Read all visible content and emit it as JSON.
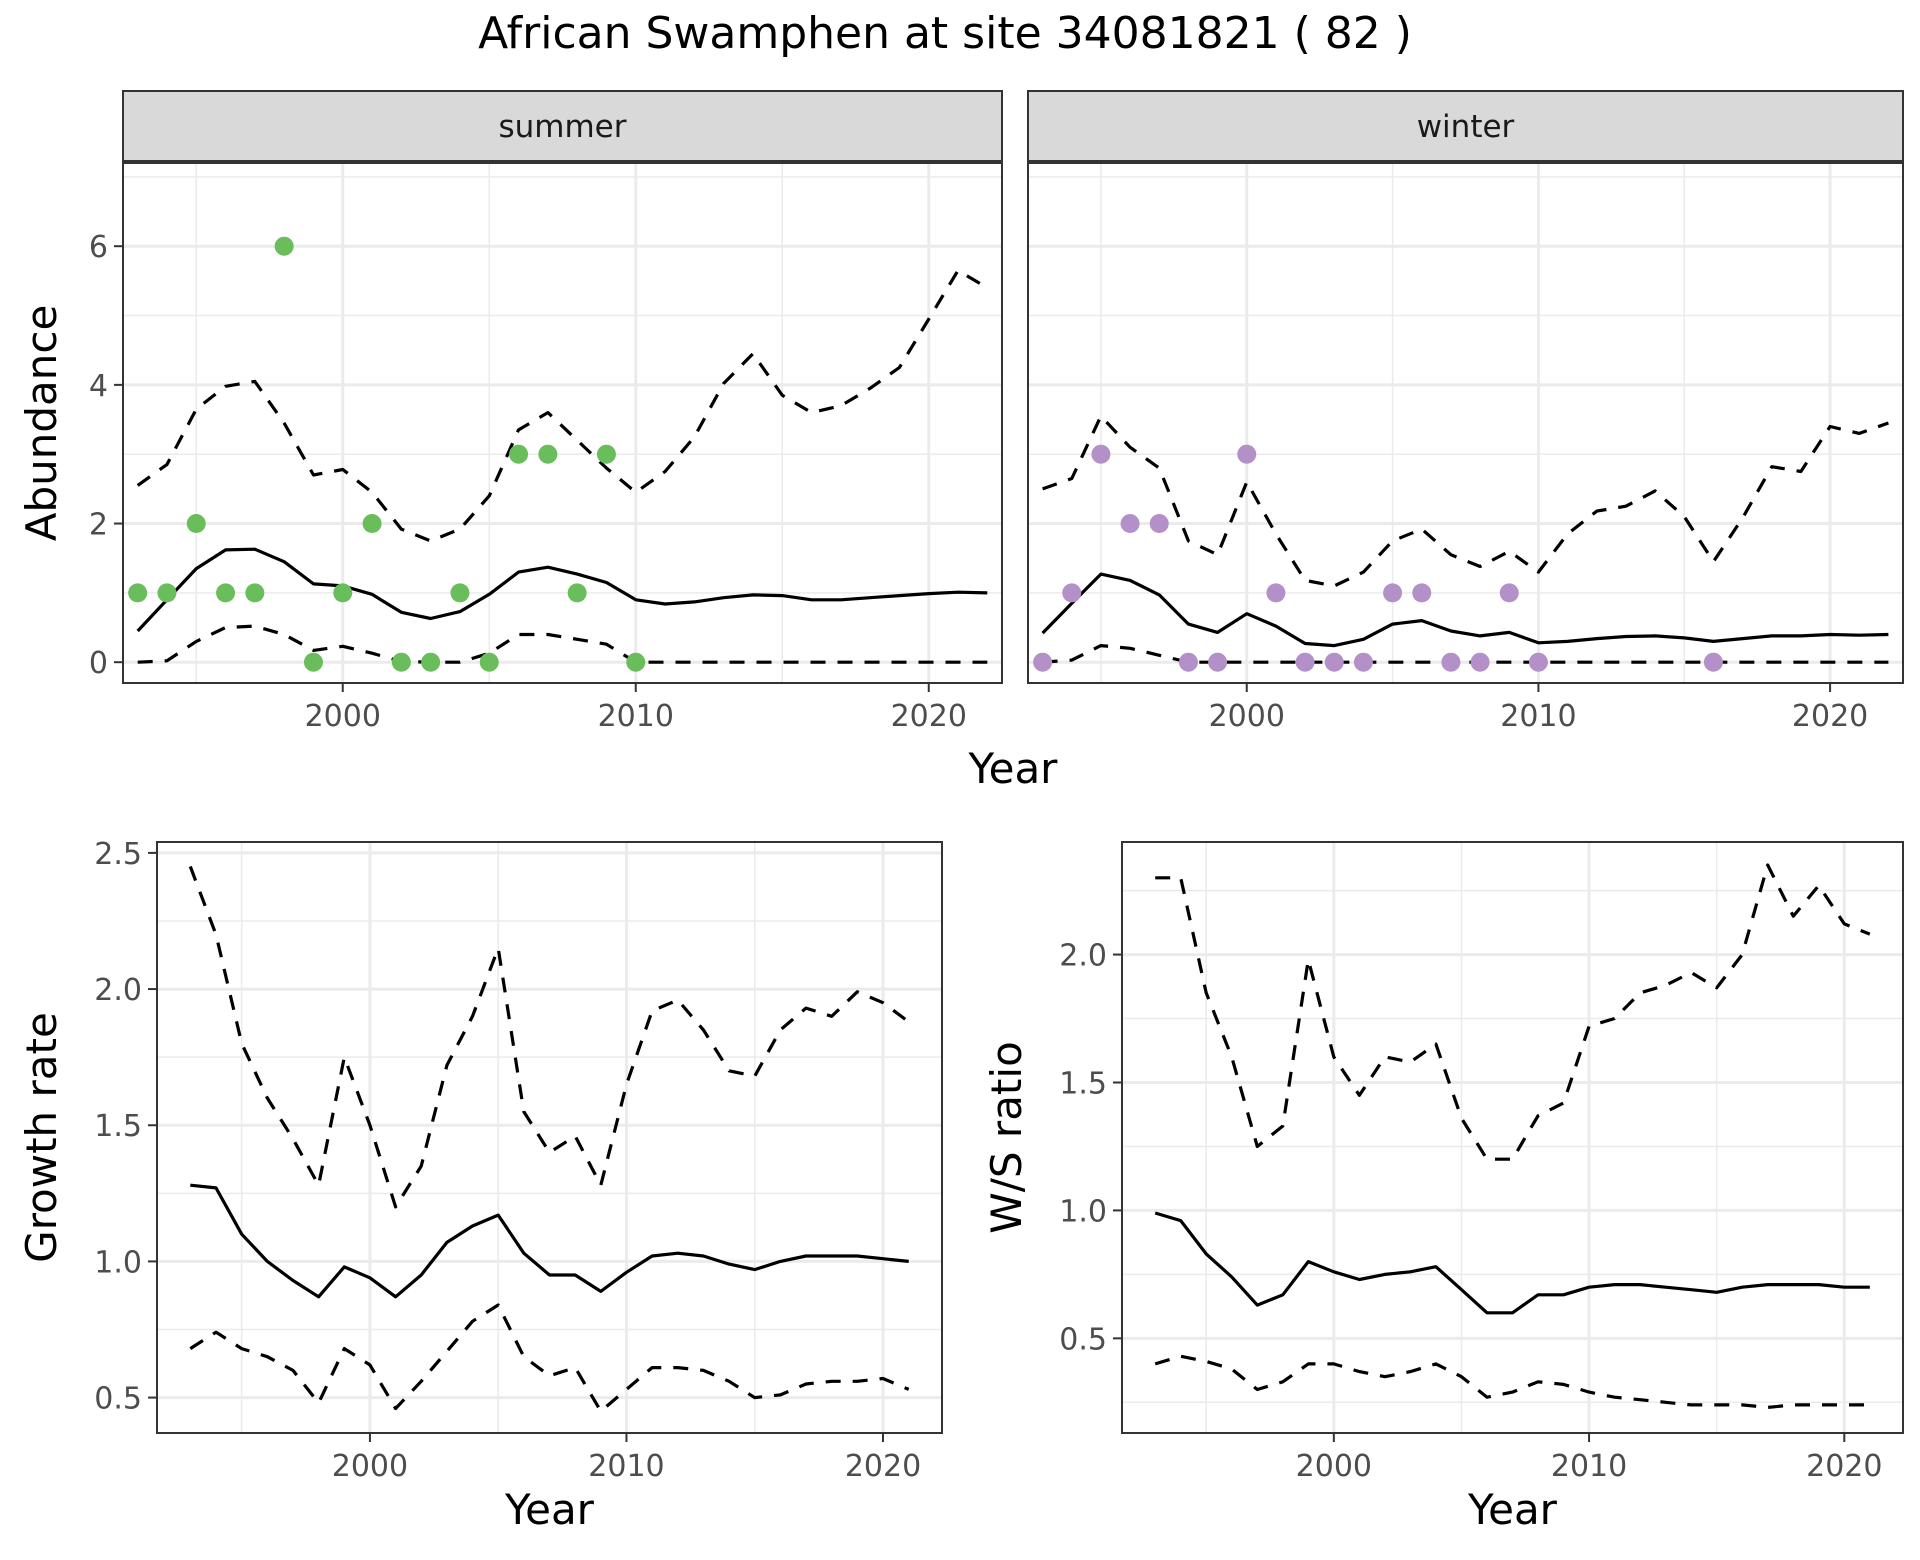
{
  "figure_title": "African Swamphen at site 34081821 ( 82 )",
  "colors": {
    "summer_points": "#6abd5b",
    "winter_points": "#b490c8",
    "lines": "#000000",
    "strip_fill": "#d9d9d9",
    "grid": "#ebebeb"
  },
  "chart_data": [
    {
      "type": "line",
      "panel": "summer",
      "strip_label": "summer",
      "xlabel": "Year",
      "ylabel": "Abundance",
      "xlim": [
        1992.5,
        2022.5
      ],
      "ylim": [
        -0.3,
        7.2
      ],
      "x_ticks": [
        2000,
        2010,
        2020
      ],
      "y_ticks": [
        0,
        2,
        4,
        6
      ],
      "grid": true,
      "series": [
        {
          "style": "solid",
          "x": [
            1993,
            1994,
            1995,
            1996,
            1997,
            1998,
            1999,
            2000,
            2001,
            2002,
            2003,
            2004,
            2005,
            2006,
            2007,
            2008,
            2009,
            2010,
            2011,
            2012,
            2013,
            2014,
            2015,
            2016,
            2017,
            2018,
            2019,
            2020,
            2021,
            2022
          ],
          "y": [
            0.45,
            0.9,
            1.35,
            1.62,
            1.63,
            1.45,
            1.13,
            1.1,
            0.98,
            0.72,
            0.63,
            0.73,
            0.98,
            1.3,
            1.37,
            1.27,
            1.15,
            0.9,
            0.84,
            0.87,
            0.93,
            0.97,
            0.96,
            0.9,
            0.9,
            0.93,
            0.96,
            0.99,
            1.01,
            1.0
          ]
        },
        {
          "style": "dashed",
          "x": [
            1993,
            1994,
            1995,
            1996,
            1997,
            1998,
            1999,
            2000,
            2001,
            2002,
            2003,
            2004,
            2005,
            2006,
            2007,
            2008,
            2009,
            2010,
            2011,
            2012,
            2013,
            2014,
            2015,
            2016,
            2017,
            2018,
            2019,
            2020,
            2021,
            2022
          ],
          "y": [
            2.55,
            2.85,
            3.65,
            3.98,
            4.05,
            3.45,
            2.7,
            2.78,
            2.45,
            1.92,
            1.75,
            1.92,
            2.4,
            3.35,
            3.6,
            3.2,
            2.8,
            2.45,
            2.75,
            3.25,
            4.02,
            4.45,
            3.85,
            3.6,
            3.7,
            3.95,
            4.25,
            4.95,
            5.65,
            5.4
          ]
        },
        {
          "style": "dashed",
          "x": [
            1993,
            1994,
            1995,
            1996,
            1997,
            1998,
            1999,
            2000,
            2001,
            2002,
            2003,
            2004,
            2005,
            2006,
            2007,
            2008,
            2009,
            2010,
            2011,
            2012,
            2013,
            2014,
            2015,
            2016,
            2017,
            2018,
            2019,
            2020,
            2021,
            2022
          ],
          "y": [
            0,
            0.02,
            0.3,
            0.5,
            0.52,
            0.4,
            0.17,
            0.23,
            0.13,
            0.01,
            0,
            0,
            0.13,
            0.4,
            0.4,
            0.33,
            0.26,
            0,
            0,
            0,
            0,
            0,
            0,
            0,
            0,
            0,
            0,
            0,
            0,
            0
          ]
        },
        {
          "style": "points",
          "x": [
            1993,
            1994,
            1995,
            1996,
            1997,
            1998,
            1999,
            2000,
            2001,
            2002,
            2003,
            2004,
            2005,
            2006,
            2007,
            2008,
            2009,
            2010
          ],
          "y": [
            1,
            1,
            2,
            1,
            1,
            6,
            0,
            1,
            2,
            0,
            0,
            1,
            0,
            3,
            3,
            1,
            3,
            0
          ]
        }
      ]
    },
    {
      "type": "line",
      "panel": "winter",
      "strip_label": "winter",
      "xlabel": "Year",
      "ylabel": "",
      "xlim": [
        1992.5,
        2022.5
      ],
      "ylim": [
        -0.3,
        7.2
      ],
      "x_ticks": [
        2000,
        2010,
        2020
      ],
      "y_ticks": [
        0,
        2,
        4,
        6
      ],
      "grid": true,
      "series": [
        {
          "style": "solid",
          "x": [
            1993,
            1994,
            1995,
            1996,
            1997,
            1998,
            1999,
            2000,
            2001,
            2002,
            2003,
            2004,
            2005,
            2006,
            2007,
            2008,
            2009,
            2010,
            2011,
            2012,
            2013,
            2014,
            2015,
            2016,
            2017,
            2018,
            2019,
            2020,
            2021,
            2022
          ],
          "y": [
            0.42,
            0.85,
            1.27,
            1.18,
            0.97,
            0.55,
            0.43,
            0.7,
            0.52,
            0.27,
            0.24,
            0.33,
            0.55,
            0.6,
            0.45,
            0.38,
            0.43,
            0.28,
            0.3,
            0.34,
            0.37,
            0.38,
            0.35,
            0.3,
            0.34,
            0.38,
            0.38,
            0.4,
            0.39,
            0.4
          ]
        },
        {
          "style": "dashed",
          "x": [
            1993,
            1994,
            1995,
            1996,
            1997,
            1998,
            1999,
            2000,
            2001,
            2002,
            2003,
            2004,
            2005,
            2006,
            2007,
            2008,
            2009,
            2010,
            2011,
            2012,
            2013,
            2014,
            2015,
            2016,
            2017,
            2018,
            2019,
            2020,
            2021,
            2022
          ],
          "y": [
            2.5,
            2.65,
            3.55,
            3.1,
            2.8,
            1.75,
            1.55,
            2.6,
            1.85,
            1.18,
            1.1,
            1.3,
            1.75,
            1.92,
            1.55,
            1.38,
            1.6,
            1.3,
            1.85,
            2.18,
            2.25,
            2.47,
            2.1,
            1.45,
            2.08,
            2.82,
            2.75,
            3.4,
            3.3,
            3.45
          ]
        },
        {
          "style": "dashed",
          "x": [
            1993,
            1994,
            1995,
            1996,
            1997,
            1998,
            1999,
            2000,
            2001,
            2002,
            2003,
            2004,
            2005,
            2006,
            2007,
            2008,
            2009,
            2010,
            2011,
            2012,
            2013,
            2014,
            2015,
            2016,
            2017,
            2018,
            2019,
            2020,
            2021,
            2022
          ],
          "y": [
            0,
            0.03,
            0.24,
            0.2,
            0.1,
            0,
            0,
            0,
            0,
            0,
            0,
            0,
            0,
            0,
            0,
            0,
            0,
            0,
            0,
            0,
            0,
            0,
            0,
            0,
            0,
            0,
            0,
            0,
            0,
            0
          ]
        },
        {
          "style": "points",
          "x": [
            1993,
            1994,
            1995,
            1996,
            1997,
            1998,
            1999,
            2000,
            2001,
            2002,
            2003,
            2004,
            2005,
            2006,
            2007,
            2008,
            2009,
            2010,
            2016
          ],
          "y": [
            0,
            1,
            3,
            2,
            2,
            0,
            0,
            3,
            1,
            0,
            0,
            0,
            1,
            1,
            0,
            0,
            1,
            0,
            0
          ]
        }
      ]
    },
    {
      "type": "line",
      "panel": "growth",
      "xlabel": "Year",
      "ylabel": "Growth rate",
      "xlim": [
        1991.7,
        2022.3
      ],
      "ylim": [
        0.37,
        2.54
      ],
      "x_ticks": [
        2000,
        2010,
        2020
      ],
      "y_ticks": [
        0.5,
        1.0,
        1.5,
        2.0,
        2.5
      ],
      "grid": true,
      "series": [
        {
          "style": "solid",
          "x": [
            1993,
            1994,
            1995,
            1996,
            1997,
            1998,
            1999,
            2000,
            2001,
            2002,
            2003,
            2004,
            2005,
            2006,
            2007,
            2008,
            2009,
            2010,
            2011,
            2012,
            2013,
            2014,
            2015,
            2016,
            2017,
            2018,
            2019,
            2020,
            2021
          ],
          "y": [
            1.28,
            1.27,
            1.1,
            1.0,
            0.93,
            0.87,
            0.98,
            0.94,
            0.87,
            0.95,
            1.07,
            1.13,
            1.17,
            1.03,
            0.95,
            0.95,
            0.89,
            0.96,
            1.02,
            1.03,
            1.02,
            0.99,
            0.97,
            1.0,
            1.02,
            1.02,
            1.02,
            1.01,
            1.0
          ]
        },
        {
          "style": "dashed",
          "x": [
            1993,
            1994,
            1995,
            1996,
            1997,
            1998,
            1999,
            2000,
            2001,
            2002,
            2003,
            2004,
            2005,
            2006,
            2007,
            2008,
            2009,
            2010,
            2011,
            2012,
            2013,
            2014,
            2015,
            2016,
            2017,
            2018,
            2019,
            2020,
            2021
          ],
          "y": [
            2.45,
            2.2,
            1.8,
            1.6,
            1.45,
            1.28,
            1.75,
            1.5,
            1.2,
            1.35,
            1.72,
            1.9,
            2.15,
            1.55,
            1.4,
            1.46,
            1.28,
            1.65,
            1.92,
            1.96,
            1.85,
            1.7,
            1.68,
            1.85,
            1.93,
            1.9,
            1.99,
            1.95,
            1.88
          ]
        },
        {
          "style": "dashed",
          "x": [
            1993,
            1994,
            1995,
            1996,
            1997,
            1998,
            1999,
            2000,
            2001,
            2002,
            2003,
            2004,
            2005,
            2006,
            2007,
            2008,
            2009,
            2010,
            2011,
            2012,
            2013,
            2014,
            2015,
            2016,
            2017,
            2018,
            2019,
            2020,
            2021
          ],
          "y": [
            0.68,
            0.74,
            0.68,
            0.65,
            0.6,
            0.48,
            0.68,
            0.62,
            0.46,
            0.56,
            0.67,
            0.78,
            0.84,
            0.65,
            0.58,
            0.61,
            0.45,
            0.53,
            0.61,
            0.61,
            0.6,
            0.56,
            0.5,
            0.51,
            0.55,
            0.56,
            0.56,
            0.57,
            0.53
          ]
        }
      ]
    },
    {
      "type": "line",
      "panel": "ratio",
      "xlabel": "Year",
      "ylabel": "W/S ratio",
      "xlim": [
        1991.7,
        2022.3
      ],
      "ylim": [
        0.13,
        2.44
      ],
      "x_ticks": [
        2000,
        2010,
        2020
      ],
      "y_ticks": [
        0.5,
        1.0,
        1.5,
        2.0
      ],
      "grid": true,
      "series": [
        {
          "style": "solid",
          "x": [
            1993,
            1994,
            1995,
            1996,
            1997,
            1998,
            1999,
            2000,
            2001,
            2002,
            2003,
            2004,
            2005,
            2006,
            2007,
            2008,
            2009,
            2010,
            2011,
            2012,
            2013,
            2014,
            2015,
            2016,
            2017,
            2018,
            2019,
            2020,
            2021
          ],
          "y": [
            0.99,
            0.96,
            0.83,
            0.74,
            0.63,
            0.67,
            0.8,
            0.76,
            0.73,
            0.75,
            0.76,
            0.78,
            0.69,
            0.6,
            0.6,
            0.67,
            0.67,
            0.7,
            0.71,
            0.71,
            0.7,
            0.69,
            0.68,
            0.7,
            0.71,
            0.71,
            0.71,
            0.7,
            0.7
          ]
        },
        {
          "style": "dashed",
          "x": [
            1993,
            1994,
            1995,
            1996,
            1997,
            1998,
            1999,
            2000,
            2001,
            2002,
            2003,
            2004,
            2005,
            2006,
            2007,
            2008,
            2009,
            2010,
            2011,
            2012,
            2013,
            2014,
            2015,
            2016,
            2017,
            2018,
            2019,
            2020,
            2021
          ],
          "y": [
            2.3,
            2.3,
            1.85,
            1.6,
            1.25,
            1.33,
            1.98,
            1.6,
            1.45,
            1.6,
            1.58,
            1.65,
            1.36,
            1.2,
            1.2,
            1.37,
            1.42,
            1.72,
            1.75,
            1.85,
            1.88,
            1.93,
            1.87,
            2.0,
            2.35,
            2.15,
            2.27,
            2.12,
            2.08
          ]
        },
        {
          "style": "dashed",
          "x": [
            1993,
            1994,
            1995,
            1996,
            1997,
            1998,
            1999,
            2000,
            2001,
            2002,
            2003,
            2004,
            2005,
            2006,
            2007,
            2008,
            2009,
            2010,
            2011,
            2012,
            2013,
            2014,
            2015,
            2016,
            2017,
            2018,
            2019,
            2020,
            2021
          ],
          "y": [
            0.4,
            0.43,
            0.41,
            0.38,
            0.3,
            0.33,
            0.4,
            0.4,
            0.37,
            0.35,
            0.37,
            0.4,
            0.35,
            0.27,
            0.29,
            0.33,
            0.32,
            0.29,
            0.27,
            0.26,
            0.25,
            0.24,
            0.24,
            0.24,
            0.23,
            0.24,
            0.24,
            0.24,
            0.24
          ]
        }
      ]
    }
  ]
}
